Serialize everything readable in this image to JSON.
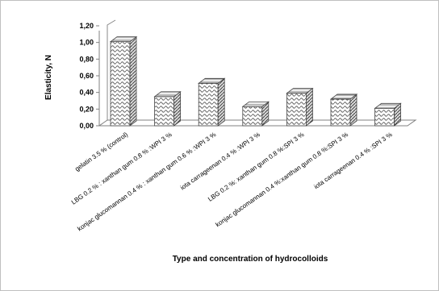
{
  "chart_data": {
    "type": "bar",
    "title": "",
    "xlabel": "Type and concentration of hydrocolloids",
    "ylabel": "Elasticity, N",
    "ylim": [
      0,
      1.2
    ],
    "yticks": [
      "0,00",
      "0,20",
      "0,40",
      "0,60",
      "0,80",
      "1,00",
      "1,20"
    ],
    "categories": [
      "gelatin 3.5 % (control)",
      "LBG 0.2 % : xanthan gum 0.8 % :WPI 3 %",
      "konjac glucomannan 0.4 % : xanthan gum 0.6 % :WPI 3 %",
      "iota carrageenan 0.4 % :WPI 3 %",
      "LBG 0.2 %: xanthan gum 0.8 %:SPI 3 %",
      "konjac glucomannan 0.4 %:xanthan gum 0.8 %:SPI 3 %",
      "iota carrageenan 0.4 % :SPI 3 %"
    ],
    "values": [
      1.01,
      0.35,
      0.51,
      0.23,
      0.39,
      0.32,
      0.21
    ],
    "grid": false,
    "legend": "none",
    "style": "3d-patterned"
  }
}
